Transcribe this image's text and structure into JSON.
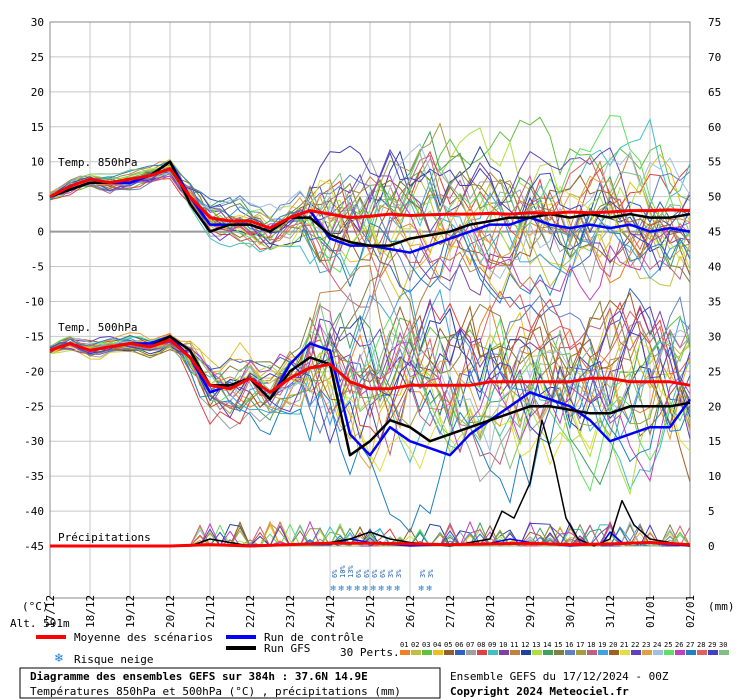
{
  "chart_data": {
    "type": "line",
    "left_axis": {
      "ticks": [
        30,
        25,
        20,
        15,
        10,
        5,
        0,
        -5,
        -10,
        -15,
        -20,
        -25,
        -30,
        -35,
        -40,
        -45
      ],
      "unit": "(°C)"
    },
    "right_axis": {
      "ticks": [
        75,
        70,
        65,
        60,
        55,
        50,
        45,
        40,
        35,
        30,
        25,
        20,
        15,
        10,
        5,
        0
      ],
      "unit": "(mm)"
    },
    "x_labels": [
      "17/12",
      "18/12",
      "19/12",
      "20/12",
      "21/12",
      "22/12",
      "23/12",
      "24/12",
      "25/12",
      "26/12",
      "27/12",
      "28/12",
      "29/12",
      "30/12",
      "31/12",
      "01/01",
      "02/01"
    ],
    "panel_labels": {
      "t850": "Temp. 850hPa",
      "t500": "Temp. 500hPa",
      "precip": "Précipitations"
    },
    "altitude": "Alt. 591m",
    "snow_risk": [
      {
        "day": 7.1,
        "pct": "6%"
      },
      {
        "day": 7.3,
        "pct": "10%"
      },
      {
        "day": 7.5,
        "pct": "13%"
      },
      {
        "day": 7.7,
        "pct": "6%"
      },
      {
        "day": 7.9,
        "pct": "6%"
      },
      {
        "day": 8.1,
        "pct": "6%"
      },
      {
        "day": 8.3,
        "pct": "6%"
      },
      {
        "day": 8.5,
        "pct": "3%"
      },
      {
        "day": 8.7,
        "pct": "3%"
      },
      {
        "day": 9.3,
        "pct": "3%"
      },
      {
        "day": 9.5,
        "pct": "3%"
      }
    ],
    "series": {
      "t850_mean": {
        "name": "Moyenne des scénarios",
        "color": "#ff0000",
        "points": [
          [
            0,
            5
          ],
          [
            0.5,
            6.5
          ],
          [
            1,
            7.5
          ],
          [
            1.5,
            7
          ],
          [
            2,
            7.5
          ],
          [
            2.5,
            8
          ],
          [
            3,
            9
          ],
          [
            3.5,
            5
          ],
          [
            4,
            2
          ],
          [
            4.5,
            1.5
          ],
          [
            5,
            1.5
          ],
          [
            5.5,
            0.5
          ],
          [
            6,
            2
          ],
          [
            6.5,
            3
          ],
          [
            7,
            2.5
          ],
          [
            7.5,
            2
          ],
          [
            8,
            2.2
          ],
          [
            8.5,
            2.5
          ],
          [
            9,
            2.3
          ],
          [
            9.5,
            2.4
          ],
          [
            10,
            2.5
          ],
          [
            10.5,
            2.5
          ],
          [
            11,
            2.6
          ],
          [
            11.5,
            2.5
          ],
          [
            12,
            2.7
          ],
          [
            12.5,
            2.6
          ],
          [
            13,
            2.8
          ],
          [
            13.5,
            2.7
          ],
          [
            14,
            2.8
          ],
          [
            14.5,
            3
          ],
          [
            15,
            3
          ],
          [
            15.5,
            3.1
          ],
          [
            16,
            3
          ]
        ]
      },
      "t850_ctrl": {
        "name": "Run de contrôle",
        "color": "#0000ff",
        "points": [
          [
            0,
            5
          ],
          [
            0.5,
            6
          ],
          [
            1,
            7
          ],
          [
            1.5,
            7
          ],
          [
            2,
            7
          ],
          [
            2.5,
            8
          ],
          [
            3,
            10
          ],
          [
            3.5,
            5
          ],
          [
            4,
            1
          ],
          [
            4.5,
            1
          ],
          [
            5,
            1
          ],
          [
            5.5,
            0
          ],
          [
            6,
            2
          ],
          [
            6.5,
            3
          ],
          [
            7,
            -1
          ],
          [
            7.5,
            -2
          ],
          [
            8,
            -2
          ],
          [
            8.5,
            -2.5
          ],
          [
            9,
            -3
          ],
          [
            9.5,
            -2
          ],
          [
            10,
            -1
          ],
          [
            10.5,
            0
          ],
          [
            11,
            1
          ],
          [
            11.5,
            1
          ],
          [
            12,
            2
          ],
          [
            12.5,
            1
          ],
          [
            13,
            0.5
          ],
          [
            13.5,
            1
          ],
          [
            14,
            0.5
          ],
          [
            14.5,
            1
          ],
          [
            15,
            0
          ],
          [
            15.5,
            0.5
          ],
          [
            16,
            0
          ]
        ]
      },
      "t850_gfs": {
        "name": "Run GFS",
        "color": "#000000",
        "points": [
          [
            0,
            5
          ],
          [
            0.5,
            6
          ],
          [
            1,
            7
          ],
          [
            1.5,
            7
          ],
          [
            2,
            7.5
          ],
          [
            2.5,
            8
          ],
          [
            3,
            10
          ],
          [
            3.5,
            4
          ],
          [
            4,
            0
          ],
          [
            4.5,
            1
          ],
          [
            5,
            1
          ],
          [
            5.5,
            0
          ],
          [
            6,
            2
          ],
          [
            6.5,
            2
          ],
          [
            7,
            -0.5
          ],
          [
            7.5,
            -1.5
          ],
          [
            8,
            -2
          ],
          [
            8.5,
            -2
          ],
          [
            9,
            -1
          ],
          [
            9.5,
            -0.5
          ],
          [
            10,
            0
          ],
          [
            10.5,
            1
          ],
          [
            11,
            1.5
          ],
          [
            11.5,
            2
          ],
          [
            12,
            2
          ],
          [
            12.5,
            2.5
          ],
          [
            13,
            2
          ],
          [
            13.5,
            2.5
          ],
          [
            14,
            2
          ],
          [
            14.5,
            2.5
          ],
          [
            15,
            2
          ],
          [
            15.5,
            2
          ],
          [
            16,
            2.5
          ]
        ]
      },
      "t500_mean": {
        "color": "#ff0000",
        "points": [
          [
            0,
            -17
          ],
          [
            0.5,
            -16
          ],
          [
            1,
            -17
          ],
          [
            1.5,
            -16.5
          ],
          [
            2,
            -16
          ],
          [
            2.5,
            -16.5
          ],
          [
            3,
            -15.5
          ],
          [
            3.5,
            -18
          ],
          [
            4,
            -22
          ],
          [
            4.5,
            -22.5
          ],
          [
            5,
            -21
          ],
          [
            5.5,
            -23
          ],
          [
            6,
            -21
          ],
          [
            6.5,
            -19.5
          ],
          [
            7,
            -19
          ],
          [
            7.5,
            -21.5
          ],
          [
            8,
            -22.5
          ],
          [
            8.5,
            -22.5
          ],
          [
            9,
            -22
          ],
          [
            9.5,
            -22
          ],
          [
            10,
            -22
          ],
          [
            10.5,
            -22
          ],
          [
            11,
            -21.5
          ],
          [
            11.5,
            -21.5
          ],
          [
            12,
            -21.5
          ],
          [
            12.5,
            -21.5
          ],
          [
            13,
            -21.5
          ],
          [
            13.5,
            -21
          ],
          [
            14,
            -21
          ],
          [
            14.5,
            -21.5
          ],
          [
            15,
            -21.5
          ],
          [
            15.5,
            -21.5
          ],
          [
            16,
            -22
          ]
        ]
      },
      "t500_ctrl": {
        "color": "#0000ff",
        "points": [
          [
            0,
            -17
          ],
          [
            0.5,
            -16
          ],
          [
            1,
            -17
          ],
          [
            1.5,
            -16.5
          ],
          [
            2,
            -16
          ],
          [
            2.5,
            -16
          ],
          [
            3,
            -15
          ],
          [
            3.5,
            -18
          ],
          [
            4,
            -23
          ],
          [
            4.5,
            -22
          ],
          [
            5,
            -21
          ],
          [
            5.5,
            -24
          ],
          [
            6,
            -19
          ],
          [
            6.5,
            -16
          ],
          [
            7,
            -17
          ],
          [
            7.5,
            -29
          ],
          [
            8,
            -32
          ],
          [
            8.5,
            -28
          ],
          [
            9,
            -30
          ],
          [
            9.5,
            -31
          ],
          [
            10,
            -32
          ],
          [
            10.5,
            -29
          ],
          [
            11,
            -27
          ],
          [
            11.5,
            -25
          ],
          [
            12,
            -23
          ],
          [
            12.5,
            -24
          ],
          [
            13,
            -25
          ],
          [
            13.5,
            -27
          ],
          [
            14,
            -30
          ],
          [
            14.5,
            -29
          ],
          [
            15,
            -28
          ],
          [
            15.5,
            -28
          ],
          [
            16,
            -24
          ]
        ]
      },
      "t500_gfs": {
        "color": "#000000",
        "points": [
          [
            0,
            -17
          ],
          [
            0.5,
            -16
          ],
          [
            1,
            -17
          ],
          [
            1.5,
            -16.5
          ],
          [
            2,
            -16
          ],
          [
            2.5,
            -16.5
          ],
          [
            3,
            -15
          ],
          [
            3.5,
            -17
          ],
          [
            4,
            -22
          ],
          [
            4.5,
            -22
          ],
          [
            5,
            -21
          ],
          [
            5.5,
            -24
          ],
          [
            6,
            -20
          ],
          [
            6.5,
            -18
          ],
          [
            7,
            -19
          ],
          [
            7.5,
            -32
          ],
          [
            8,
            -30
          ],
          [
            8.5,
            -27
          ],
          [
            9,
            -28
          ],
          [
            9.5,
            -30
          ],
          [
            10,
            -29
          ],
          [
            10.5,
            -28
          ],
          [
            11,
            -27
          ],
          [
            11.5,
            -26
          ],
          [
            12,
            -25
          ],
          [
            12.5,
            -25
          ],
          [
            13,
            -25.5
          ],
          [
            13.5,
            -26
          ],
          [
            14,
            -26
          ],
          [
            14.5,
            -25
          ],
          [
            15,
            -25
          ],
          [
            15.5,
            -25
          ],
          [
            16,
            -24.5
          ]
        ]
      },
      "precip_mean": {
        "color": "#ff0000",
        "points": [
          [
            0,
            -45
          ],
          [
            3,
            -45
          ],
          [
            4,
            -44.8
          ],
          [
            5,
            -45
          ],
          [
            6,
            -44.8
          ],
          [
            7,
            -44.6
          ],
          [
            8,
            -44.6
          ],
          [
            9,
            -44.7
          ],
          [
            10,
            -44.8
          ],
          [
            11,
            -44.7
          ],
          [
            12,
            -44.6
          ],
          [
            13,
            -44.8
          ],
          [
            14,
            -44.7
          ],
          [
            15,
            -44.5
          ],
          [
            16,
            -44.8
          ]
        ]
      },
      "precip_gfs": {
        "color": "#000000",
        "points": [
          [
            0,
            -45
          ],
          [
            3.5,
            -45
          ],
          [
            4,
            -44
          ],
          [
            4.5,
            -44.5
          ],
          [
            5,
            -45
          ],
          [
            7,
            -44.5
          ],
          [
            7.5,
            -44
          ],
          [
            8,
            -43
          ],
          [
            8.5,
            -44
          ],
          [
            9,
            -44.5
          ],
          [
            10,
            -45
          ],
          [
            11,
            -44
          ],
          [
            11.3,
            -40
          ],
          [
            11.6,
            -41
          ],
          [
            12,
            -36
          ],
          [
            12.3,
            -27
          ],
          [
            12.6,
            -33
          ],
          [
            12.9,
            -41
          ],
          [
            13.2,
            -44
          ],
          [
            13.6,
            -45
          ],
          [
            14,
            -44
          ],
          [
            14.3,
            -38.5
          ],
          [
            14.6,
            -42
          ],
          [
            15,
            -44
          ],
          [
            16,
            -45
          ]
        ]
      },
      "precip_ctrl": {
        "color": "#0000ff",
        "points": [
          [
            0,
            -45
          ],
          [
            7,
            -44.8
          ],
          [
            7.5,
            -44
          ],
          [
            8,
            -44.5
          ],
          [
            9,
            -45
          ],
          [
            10,
            -44.8
          ],
          [
            11,
            -44.6
          ],
          [
            11.5,
            -44
          ],
          [
            12,
            -44.5
          ],
          [
            13,
            -45
          ],
          [
            13.8,
            -44.7
          ],
          [
            14,
            -43
          ],
          [
            14.3,
            -44.5
          ],
          [
            15,
            -44.6
          ],
          [
            16,
            -45
          ]
        ]
      }
    }
  },
  "legend": {
    "mean": "Moyenne des scénarios",
    "ctrl": "Run de contrôle",
    "gfs": "Run GFS",
    "snow": "Risque neige",
    "perts": "30 Perts.",
    "member_nums": [
      "01",
      "02",
      "03",
      "04",
      "05",
      "06",
      "07",
      "08",
      "09",
      "10",
      "11",
      "12",
      "13",
      "14",
      "15",
      "16",
      "17",
      "18",
      "19",
      "20",
      "21",
      "22",
      "23",
      "24",
      "25",
      "26",
      "27",
      "28",
      "29",
      "30"
    ],
    "member_colors": [
      "#f08020",
      "#c0c040",
      "#60c040",
      "#e8c020",
      "#906030",
      "#3060c0",
      "#a0a0a0",
      "#e04040",
      "#40c0c0",
      "#8040a0",
      "#c08040",
      "#2040a0",
      "#b0e040",
      "#40a060",
      "#808040",
      "#6080c0",
      "#a0a040",
      "#c06080",
      "#40a0e0",
      "#a06020",
      "#e0e040",
      "#6040c0",
      "#e0a040",
      "#a0c0e0",
      "#60e060",
      "#c040c0",
      "#2080c0",
      "#e06060",
      "#4040c0",
      "#80c080"
    ]
  },
  "info": {
    "title": "Diagramme des ensembles GEFS sur 384h : 37.6N 14.9E",
    "subtitle": "Températures 850hPa et 500hPa (°C) , précipitations (mm)",
    "run": "Ensemble GEFS du 17/12/2024 - 00Z",
    "copyright": "Copyright 2024 Meteociel.fr"
  }
}
